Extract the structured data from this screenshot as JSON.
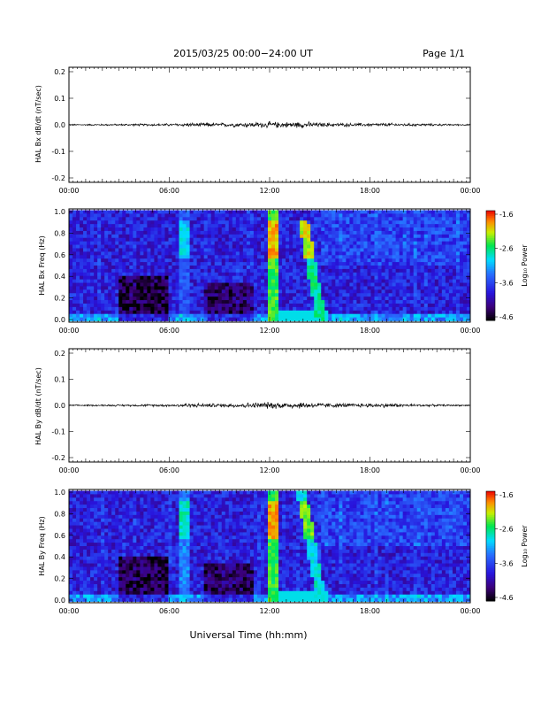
{
  "header": {
    "title": "2015/03/25  00:00−24:00 UT",
    "page": "Page 1/1"
  },
  "footer": {
    "xlabel": "Universal Time (hh:mm)"
  },
  "chart_data": [
    {
      "type": "line",
      "panel": "Bx dB/dt",
      "ylabel": "HAL Bx dB/dt (nT/sec)",
      "xlim": [
        0,
        24
      ],
      "ylim": [
        -0.2,
        0.2
      ],
      "yticks": [
        "0.2",
        "0.1",
        "0.0",
        "-0.1",
        "-0.2"
      ],
      "xtick_labels": [
        "00:00",
        "06:00",
        "12:00",
        "18:00",
        "00:00"
      ],
      "series": [
        {
          "values_hour": [
            0,
            3,
            6,
            7,
            9,
            11,
            12,
            13,
            14,
            15,
            17,
            19,
            21,
            24
          ],
          "amplitude": [
            0.002,
            0.003,
            0.004,
            0.006,
            0.006,
            0.008,
            0.01,
            0.009,
            0.01,
            0.007,
            0.005,
            0.006,
            0.004,
            0.002
          ]
        }
      ]
    },
    {
      "type": "heatmap",
      "panel": "Bx spectrogram",
      "ylabel": "HAL Bx Freq (Hz)",
      "xlim": [
        0,
        24
      ],
      "ylim": [
        0,
        1.0
      ],
      "yticks": [
        "1.0",
        "0.8",
        "0.6",
        "0.4",
        "0.2",
        "0.0"
      ],
      "xtick_labels": [
        "00:00",
        "06:00",
        "12:00",
        "18:00",
        "00:00"
      ],
      "colorbar": {
        "label": "Log₁₀ Power",
        "ticks": [
          "-1.6",
          "-2.6",
          "-3.6",
          "-4.6"
        ],
        "range": [
          -4.6,
          -1.6
        ]
      },
      "features": [
        {
          "t_start": 6.6,
          "t_end": 7.2,
          "f_max": 1.0,
          "level": -2.8
        },
        {
          "t_start": 12.0,
          "t_end": 12.6,
          "f_max": 1.0,
          "level": -1.8
        },
        {
          "t_start": 13.6,
          "t_end": 14.2,
          "f_max": 0.9,
          "level": -2.0
        }
      ]
    },
    {
      "type": "line",
      "panel": "By dB/dt",
      "ylabel": "HAL By dB/dt (nT/sec)",
      "xlim": [
        0,
        24
      ],
      "ylim": [
        -0.2,
        0.2
      ],
      "yticks": [
        "0.2",
        "0.1",
        "0.0",
        "-0.1",
        "-0.2"
      ],
      "xtick_labels": [
        "00:00",
        "06:00",
        "12:00",
        "18:00",
        "00:00"
      ],
      "series": [
        {
          "values_hour": [
            0,
            3,
            6,
            7,
            9,
            11,
            12,
            13,
            14,
            15,
            17,
            19,
            21,
            24
          ],
          "amplitude": [
            0.002,
            0.003,
            0.004,
            0.007,
            0.006,
            0.009,
            0.011,
            0.01,
            0.011,
            0.008,
            0.006,
            0.007,
            0.004,
            0.002
          ]
        }
      ]
    },
    {
      "type": "heatmap",
      "panel": "By spectrogram",
      "ylabel": "HAL By Freq (Hz)",
      "xlim": [
        0,
        24
      ],
      "ylim": [
        0,
        1.0
      ],
      "yticks": [
        "1.0",
        "0.8",
        "0.6",
        "0.4",
        "0.2",
        "0.0"
      ],
      "xtick_labels": [
        "00:00",
        "06:00",
        "12:00",
        "18:00",
        "00:00"
      ],
      "colorbar": {
        "label": "Log₁₀ Power",
        "ticks": [
          "-1.6",
          "-2.6",
          "-3.6",
          "-4.6"
        ],
        "range": [
          -4.6,
          -1.6
        ]
      },
      "features": [
        {
          "t_start": 6.6,
          "t_end": 7.3,
          "f_max": 1.0,
          "level": -2.6
        },
        {
          "t_start": 12.0,
          "t_end": 12.6,
          "f_max": 1.0,
          "level": -1.8
        },
        {
          "t_start": 13.6,
          "t_end": 14.2,
          "f_max": 1.0,
          "level": -2.2
        }
      ]
    }
  ]
}
